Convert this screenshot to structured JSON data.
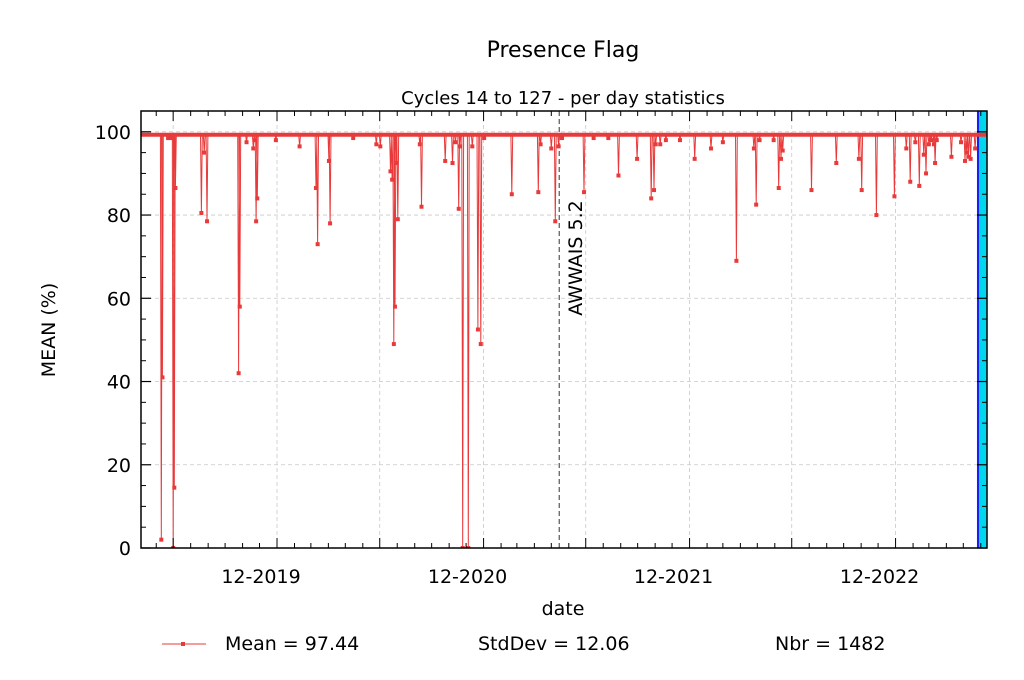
{
  "chart_data": {
    "type": "line",
    "title": "Presence Flag",
    "subtitle": "Cycles 14 to 127 - per day statistics",
    "xlabel": "date",
    "ylabel": "MEAN (%)",
    "x_tick_labels": [
      "12-2019",
      "12-2020",
      "12-2021",
      "12-2022"
    ],
    "y_ticks": [
      0,
      20,
      40,
      60,
      80,
      100
    ],
    "xlim": [
      "2019-05-05",
      "2023-06-12"
    ],
    "ylim": [
      0,
      105
    ],
    "grid": true,
    "baseline": 99.3,
    "annotation": {
      "date": "2021-05-15",
      "label": "AWWAIS 5.2"
    },
    "highlight_span": [
      "2023-05-27",
      "2023-06-12"
    ],
    "highlight_color": "#00d6f0",
    "series": [
      {
        "name": "Mean = 97.44",
        "color": "#e83a3a",
        "dips": [
          [
            "2019-06-10",
            2
          ],
          [
            "2019-06-12",
            41
          ],
          [
            "2019-06-22",
            98.5
          ],
          [
            "2019-06-27",
            98.5
          ],
          [
            "2019-07-01",
            0
          ],
          [
            "2019-07-03",
            14.5
          ],
          [
            "2019-07-05",
            86.5
          ],
          [
            "2019-08-20",
            80.5
          ],
          [
            "2019-08-25",
            95
          ],
          [
            "2019-08-30",
            78.5
          ],
          [
            "2019-10-25",
            42
          ],
          [
            "2019-10-27",
            58
          ],
          [
            "2019-11-08",
            97.5
          ],
          [
            "2019-11-20",
            96
          ],
          [
            "2019-11-22",
            98
          ],
          [
            "2019-11-25",
            78.5
          ],
          [
            "2019-11-27",
            84
          ],
          [
            "2019-12-30",
            98
          ],
          [
            "2020-02-10",
            96.5
          ],
          [
            "2020-03-10",
            86.5
          ],
          [
            "2020-03-13",
            73
          ],
          [
            "2020-04-02",
            93
          ],
          [
            "2020-04-04",
            78
          ],
          [
            "2020-05-15",
            98.5
          ],
          [
            "2020-06-25",
            97
          ],
          [
            "2020-07-02",
            96.5
          ],
          [
            "2020-07-20",
            90.5
          ],
          [
            "2020-07-23",
            88.5
          ],
          [
            "2020-07-26",
            49
          ],
          [
            "2020-07-28",
            58
          ],
          [
            "2020-07-30",
            92.5
          ],
          [
            "2020-08-02",
            79
          ],
          [
            "2020-09-10",
            97
          ],
          [
            "2020-09-13",
            82
          ],
          [
            "2020-10-25",
            93
          ],
          [
            "2020-11-07",
            92.5
          ],
          [
            "2020-11-12",
            97.5
          ],
          [
            "2020-11-18",
            81.5
          ],
          [
            "2020-11-20",
            96.5
          ],
          [
            "2020-11-25",
            0
          ],
          [
            "2020-12-05",
            0
          ],
          [
            "2020-12-12",
            96.5
          ],
          [
            "2020-12-22",
            52.5
          ],
          [
            "2020-12-27",
            49
          ],
          [
            "2021-01-02",
            98.5
          ],
          [
            "2021-02-20",
            85
          ],
          [
            "2021-04-08",
            85.5
          ],
          [
            "2021-04-12",
            97
          ],
          [
            "2021-05-01",
            96
          ],
          [
            "2021-05-08",
            78.5
          ],
          [
            "2021-05-14",
            96.5
          ],
          [
            "2021-05-20",
            98.5
          ],
          [
            "2021-06-28",
            85.5
          ],
          [
            "2021-07-15",
            98.5
          ],
          [
            "2021-08-10",
            98.5
          ],
          [
            "2021-08-28",
            89.5
          ],
          [
            "2021-09-30",
            93.5
          ],
          [
            "2021-10-25",
            84
          ],
          [
            "2021-10-30",
            86
          ],
          [
            "2021-11-02",
            97
          ],
          [
            "2021-11-10",
            97
          ],
          [
            "2021-11-20",
            98
          ],
          [
            "2021-12-15",
            98
          ],
          [
            "2022-01-10",
            93.5
          ],
          [
            "2022-02-08",
            96
          ],
          [
            "2022-03-01",
            97.5
          ],
          [
            "2022-03-25",
            69
          ],
          [
            "2022-04-25",
            96
          ],
          [
            "2022-04-29",
            82.5
          ],
          [
            "2022-05-05",
            98
          ],
          [
            "2022-05-30",
            98
          ],
          [
            "2022-06-08",
            86.5
          ],
          [
            "2022-06-12",
            93.5
          ],
          [
            "2022-06-15",
            95.5
          ],
          [
            "2022-08-05",
            86
          ],
          [
            "2022-09-18",
            92.5
          ],
          [
            "2022-10-28",
            93.5
          ],
          [
            "2022-11-02",
            86
          ],
          [
            "2022-11-28",
            80
          ],
          [
            "2022-12-30",
            84.5
          ],
          [
            "2023-01-20",
            96
          ],
          [
            "2023-01-27",
            88
          ],
          [
            "2023-02-05",
            97.5
          ],
          [
            "2023-02-12",
            87
          ],
          [
            "2023-02-20",
            94.5
          ],
          [
            "2023-02-24",
            90
          ],
          [
            "2023-03-01",
            97
          ],
          [
            "2023-03-05",
            98
          ],
          [
            "2023-03-10",
            97
          ],
          [
            "2023-03-12",
            92.5
          ],
          [
            "2023-03-15",
            98
          ],
          [
            "2023-04-10",
            94
          ],
          [
            "2023-04-27",
            97.5
          ],
          [
            "2023-05-04",
            93
          ],
          [
            "2023-05-07",
            95
          ],
          [
            "2023-05-10",
            94
          ],
          [
            "2023-05-14",
            93.5
          ],
          [
            "2023-05-22",
            96
          ]
        ]
      }
    ],
    "legend": {
      "mean_label": "Mean = 97.44",
      "stddev_label": "StdDev = 12.06",
      "nbr_label": "Nbr = 1482"
    }
  }
}
